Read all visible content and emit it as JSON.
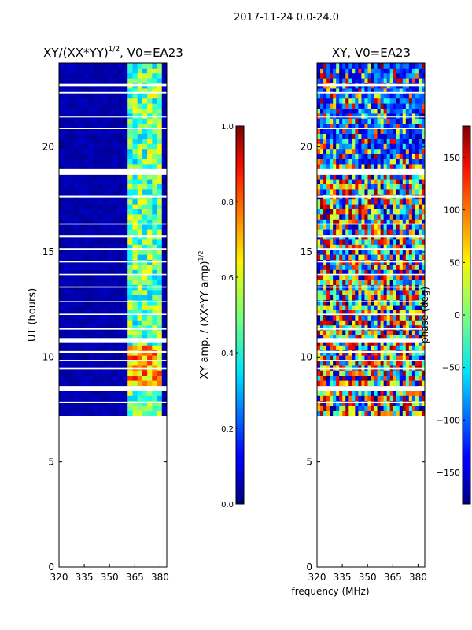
{
  "suptitle": "2017-11-24 0.0-24.0",
  "chart_data": [
    {
      "type": "heatmap",
      "title": "XY/(XX*YY)",
      "title_power": "1/2",
      "title_suffix": ", V0=EA23",
      "xlabel": "",
      "ylabel": "UT (hours)",
      "xlim": [
        320,
        384
      ],
      "ylim": [
        0,
        24
      ],
      "xticks": [
        320,
        335,
        350,
        365,
        380
      ],
      "yticks": [
        0,
        5,
        10,
        15,
        20
      ],
      "data_start_hour": 7.2,
      "colormap": "jet",
      "colorbar": {
        "label": "XY amp. / (XX*YY amp)",
        "label_power": "1/2",
        "range": [
          0.0,
          1.0
        ],
        "ticks": [
          "0.0",
          "0.2",
          "0.4",
          "0.6",
          "0.8",
          "1.0"
        ]
      }
    },
    {
      "type": "heatmap",
      "title": "XY, V0=EA23",
      "xlabel": "frequency (MHz)",
      "ylabel": "",
      "xlim": [
        320,
        384
      ],
      "ylim": [
        0,
        24
      ],
      "xticks": [
        320,
        335,
        350,
        365,
        380
      ],
      "yticks": [
        0,
        5,
        10,
        15,
        20
      ],
      "data_start_hour": 7.2,
      "colormap": "jet",
      "colorbar": {
        "label": "phase (deg)",
        "range": [
          -180,
          180
        ],
        "ticks": [
          "−150",
          "−100",
          "−50",
          "0",
          "50",
          "100",
          "150"
        ]
      }
    }
  ]
}
